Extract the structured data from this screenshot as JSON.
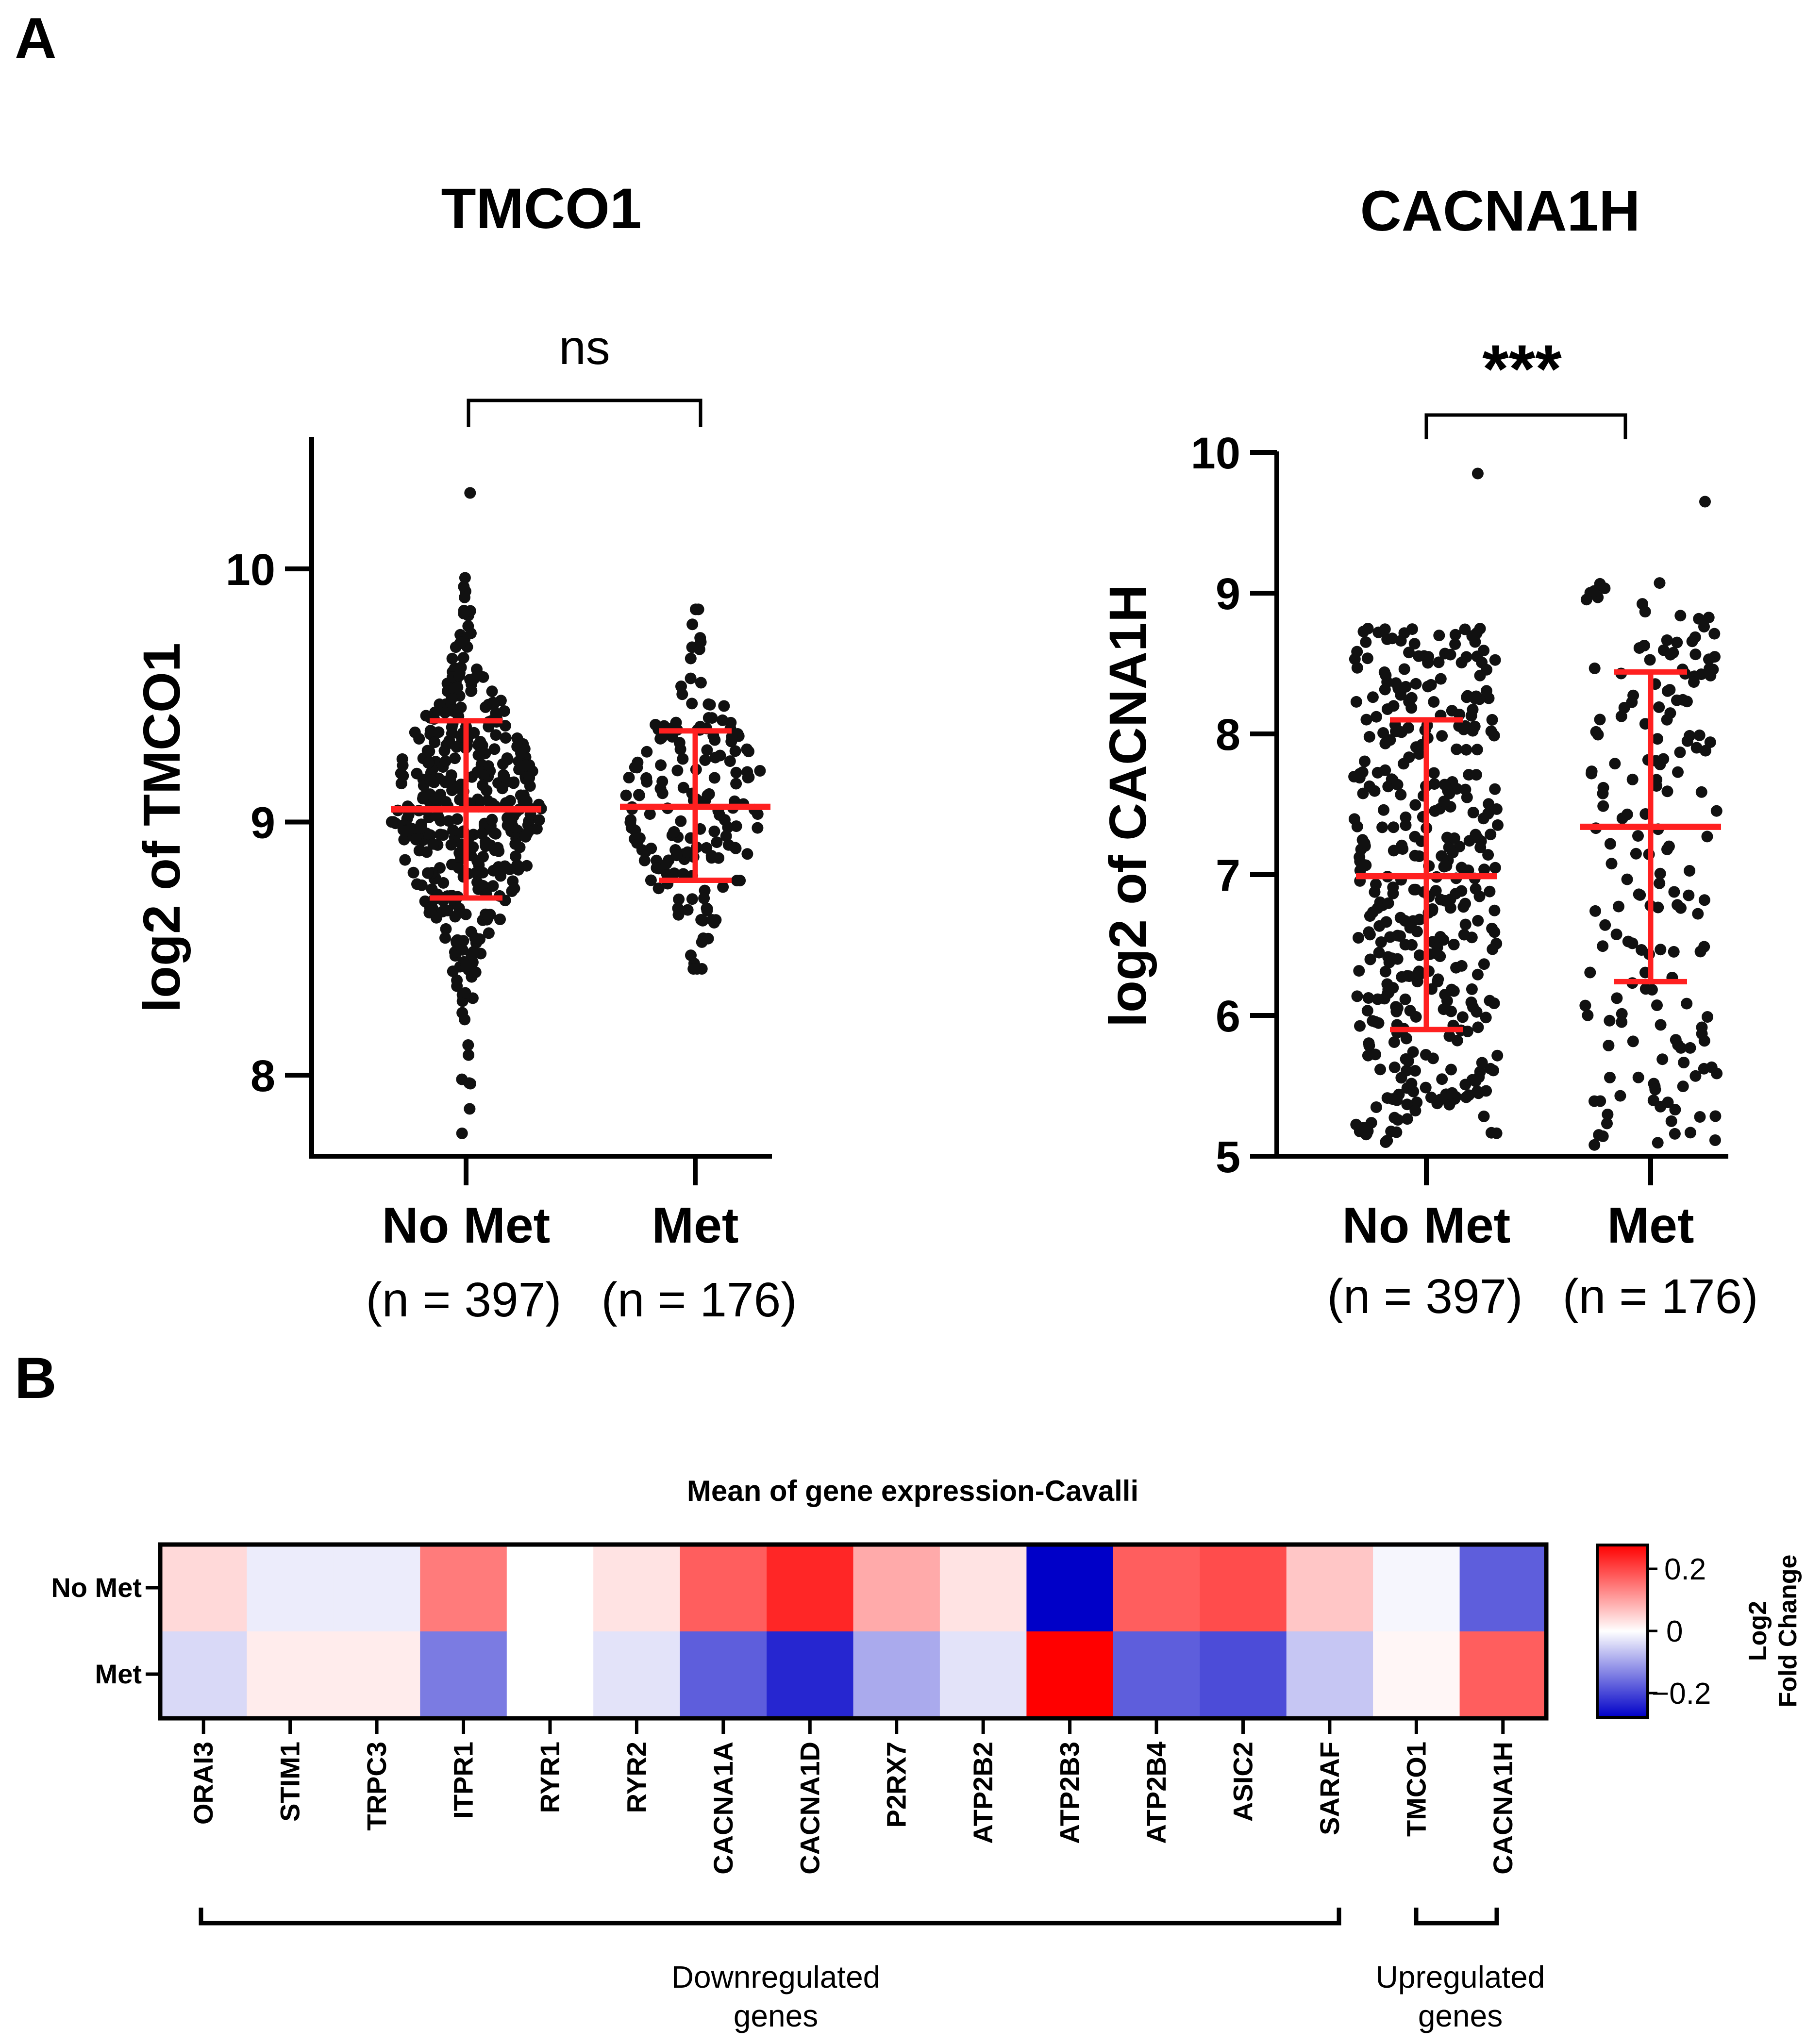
{
  "panels": {
    "a_label": "A",
    "b_label": "B"
  },
  "chart_data": [
    {
      "type": "scatter",
      "subtype": "dot-plot",
      "title": "TMCO1",
      "ylabel": "log2 of TMCO1",
      "ylim": [
        7.75,
        10.5
      ],
      "yticks": [
        8,
        9,
        10
      ],
      "significance": "ns",
      "groups": [
        {
          "name": "No Met",
          "n_label": "(n = 397)",
          "n": 397,
          "mean": 9.05,
          "sd_low": 8.7,
          "sd_high": 9.4,
          "min": 7.77,
          "max": 10.3
        },
        {
          "name": "Met",
          "n_label": "(n = 176)",
          "n": 176,
          "mean": 9.06,
          "sd_low": 8.77,
          "sd_high": 9.36,
          "min": 8.42,
          "max": 9.84
        }
      ]
    },
    {
      "type": "scatter",
      "subtype": "dot-plot",
      "title": "CACNA1H",
      "ylabel": "log2 of CACNA1H",
      "ylim": [
        5,
        10
      ],
      "yticks": [
        5,
        6,
        7,
        8,
        9,
        10
      ],
      "significance": "***",
      "groups": [
        {
          "name": "No Met",
          "n_label": "(n = 397)",
          "n": 397,
          "mean": 6.99,
          "sd_low": 5.9,
          "sd_high": 8.1,
          "min": 5.1,
          "max": 9.85
        },
        {
          "name": "Met",
          "n_label": "(n = 176)",
          "n": 176,
          "mean": 7.34,
          "sd_low": 6.24,
          "sd_high": 8.44,
          "min": 5.08,
          "max": 9.65
        }
      ]
    },
    {
      "type": "heatmap",
      "title": "Mean of gene expression-Cavalli",
      "rows": [
        "No Met",
        "Met"
      ],
      "columns": [
        "ORAI3",
        "STIM1",
        "TRPC3",
        "ITPR1",
        "RYR1",
        "RYR2",
        "CACNA1A",
        "CACNA1D",
        "P2RX7",
        "ATP2B2",
        "ATP2B3",
        "ATP2B4",
        "ASIC2",
        "SARAF",
        "TMCO1",
        "CACNA1H"
      ],
      "values": [
        [
          0.04,
          -0.02,
          -0.02,
          0.14,
          0.0,
          0.03,
          0.17,
          0.23,
          0.09,
          0.03,
          -0.27,
          0.17,
          0.19,
          0.06,
          -0.01,
          -0.17
        ],
        [
          -0.04,
          0.02,
          0.02,
          -0.14,
          0.0,
          -0.03,
          -0.17,
          -0.23,
          -0.09,
          -0.03,
          0.27,
          -0.17,
          -0.19,
          -0.06,
          0.01,
          0.17
        ]
      ],
      "colorbar": {
        "title_line1": "Log2",
        "title_line2": "Fold Change",
        "ticks": [
          "0.2",
          "0",
          "−0.2"
        ],
        "range": [
          -0.27,
          0.27
        ]
      },
      "colors": {
        "negative": "#0000c8",
        "neutral": "#ffffff",
        "positive": "#ff0000"
      },
      "groups": [
        {
          "label_line1": "Downregulated",
          "label_line2": "genes",
          "first": 0,
          "last": 13
        },
        {
          "label_line1": "Upregulated",
          "label_line2": "genes",
          "first": 14,
          "last": 15
        }
      ]
    }
  ]
}
